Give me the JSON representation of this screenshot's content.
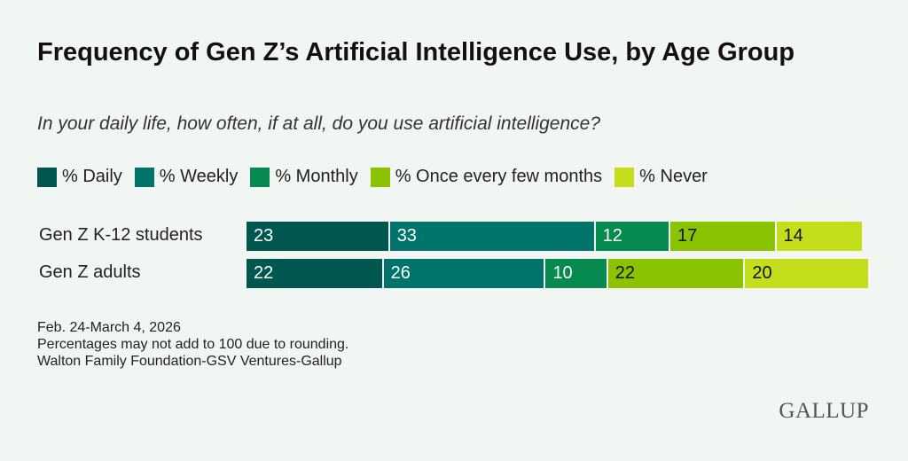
{
  "chart_data": {
    "type": "bar",
    "stacked": true,
    "orientation": "horizontal",
    "title": "Frequency of Gen Z’s Artificial Intelligence Use, by Age Group",
    "subtitle": "In your daily life, how often, if at all, do you use artificial intelligence?",
    "categories": [
      "Gen Z K-12 students",
      "Gen Z adults"
    ],
    "series": [
      {
        "name": "% Daily",
        "color": "#00574f",
        "label_color": "#ffffff",
        "values": [
          23,
          22
        ]
      },
      {
        "name": "% Weekly",
        "color": "#00746a",
        "label_color": "#ffffff",
        "values": [
          33,
          26
        ]
      },
      {
        "name": "% Monthly",
        "color": "#078a4f",
        "label_color": "#ffffff",
        "values": [
          12,
          10
        ]
      },
      {
        "name": "% Once every few months",
        "color": "#8bc300",
        "label_color": "#111111",
        "values": [
          17,
          22
        ]
      },
      {
        "name": "% Never",
        "color": "#c3de1b",
        "label_color": "#111111",
        "values": [
          14,
          20
        ]
      }
    ],
    "legend": "top"
  },
  "notes": [
    "Feb. 24-March 4, 2026",
    "Percentages may not add to 100 due to rounding.",
    "Walton Family Foundation-GSV Ventures-Gallup"
  ],
  "logo": "GALLUP"
}
